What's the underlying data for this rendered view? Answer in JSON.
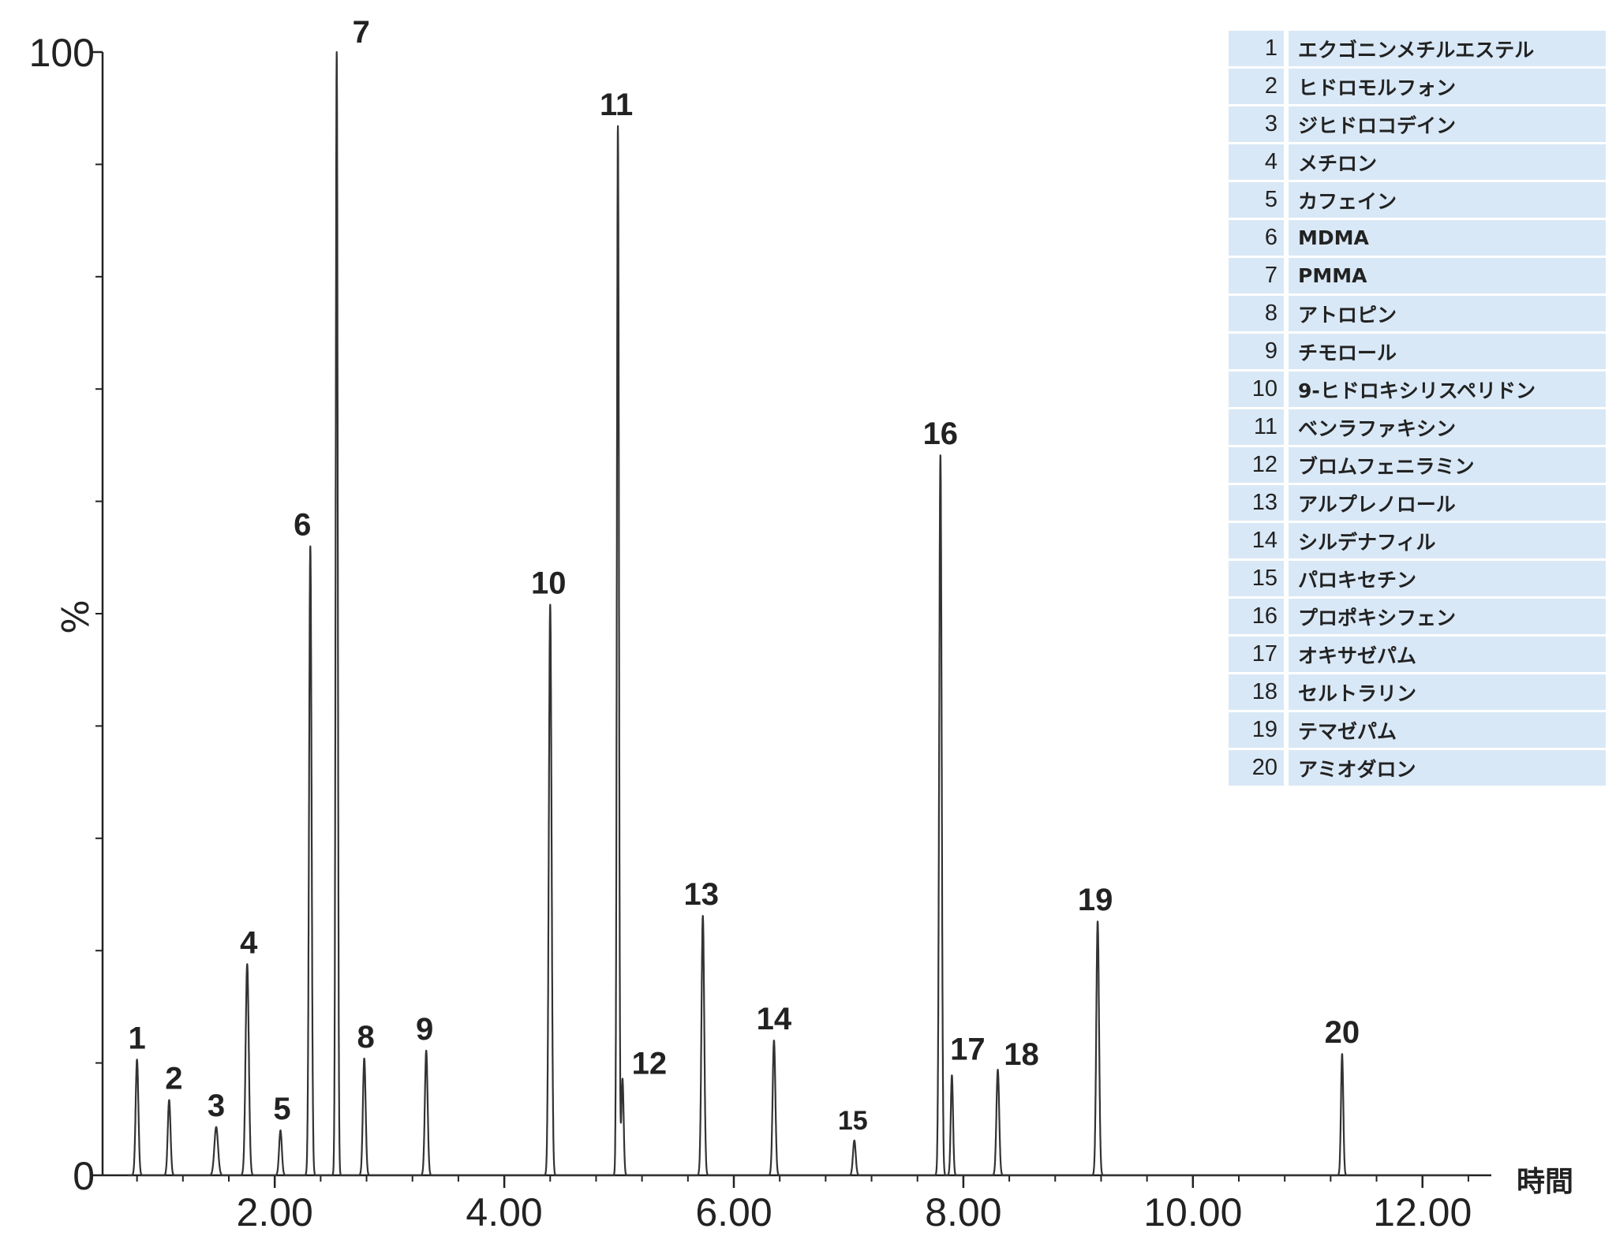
{
  "chart_data": {
    "type": "line",
    "title": "",
    "xlabel": "時間",
    "ylabel": "%",
    "xlim": [
      0.5,
      12.6
    ],
    "ylim": [
      0,
      100
    ],
    "x_ticks": [
      2.0,
      4.0,
      6.0,
      8.0,
      10.0,
      12.0
    ],
    "x_tick_labels": [
      "2.00",
      "4.00",
      "6.00",
      "8.00",
      "10.00",
      "12.00"
    ],
    "y_ticks": [
      0,
      100
    ],
    "y_tick_labels": [
      "0",
      "100"
    ],
    "y_minor_ticks": [
      10,
      20,
      30,
      40,
      50,
      60,
      70,
      80,
      90
    ],
    "x_minor_step": 0.4,
    "series": [
      {
        "name": "chromatogram",
        "peaks": [
          {
            "id": "1",
            "rt": 0.8,
            "height": 10.3,
            "width": 0.012
          },
          {
            "id": "2",
            "rt": 1.08,
            "height": 6.7,
            "width": 0.012
          },
          {
            "id": "3",
            "rt": 1.49,
            "height": 4.3,
            "width": 0.016
          },
          {
            "id": "4",
            "rt": 1.76,
            "height": 18.8,
            "width": 0.014
          },
          {
            "id": "5",
            "rt": 2.05,
            "height": 4.0,
            "width": 0.012
          },
          {
            "id": "6",
            "rt": 2.31,
            "height": 56.0,
            "width": 0.011
          },
          {
            "id": "7",
            "rt": 2.54,
            "height": 100.0,
            "width": 0.009
          },
          {
            "id": "8",
            "rt": 2.78,
            "height": 10.4,
            "width": 0.012
          },
          {
            "id": "9",
            "rt": 3.32,
            "height": 11.1,
            "width": 0.012
          },
          {
            "id": "10",
            "rt": 4.4,
            "height": 50.8,
            "width": 0.012
          },
          {
            "id": "11",
            "rt": 4.99,
            "height": 93.4,
            "width": 0.009
          },
          {
            "id": "12",
            "rt": 5.03,
            "height": 8.6,
            "width": 0.01
          },
          {
            "id": "13",
            "rt": 5.73,
            "height": 23.1,
            "width": 0.012
          },
          {
            "id": "14",
            "rt": 6.35,
            "height": 12.0,
            "width": 0.012
          },
          {
            "id": "15",
            "rt": 7.05,
            "height": 3.1,
            "width": 0.012
          },
          {
            "id": "16",
            "rt": 7.8,
            "height": 64.1,
            "width": 0.011
          },
          {
            "id": "17",
            "rt": 7.9,
            "height": 8.9,
            "width": 0.01
          },
          {
            "id": "18",
            "rt": 8.3,
            "height": 9.4,
            "width": 0.012
          },
          {
            "id": "19",
            "rt": 9.17,
            "height": 22.6,
            "width": 0.012
          },
          {
            "id": "20",
            "rt": 11.3,
            "height": 10.8,
            "width": 0.01
          }
        ]
      }
    ],
    "peak_labels": [
      "1",
      "2",
      "3",
      "4",
      "5",
      "6",
      "7",
      "8",
      "9",
      "10",
      "11",
      "12",
      "13",
      "14",
      "15",
      "16",
      "17",
      "18",
      "19",
      "20"
    ],
    "legend": [
      {
        "num": "1",
        "name": "エクゴニンメチルエステル"
      },
      {
        "num": "2",
        "name": "ヒドロモルフォン"
      },
      {
        "num": "3",
        "name": "ジヒドロコデイン"
      },
      {
        "num": "4",
        "name": "メチロン"
      },
      {
        "num": "5",
        "name": "カフェイン"
      },
      {
        "num": "6",
        "name": "MDMA"
      },
      {
        "num": "7",
        "name": "PMMA"
      },
      {
        "num": "8",
        "name": "アトロピン"
      },
      {
        "num": "9",
        "name": "チモロール"
      },
      {
        "num": "10",
        "name": "9-ヒドロキシリスペリドン"
      },
      {
        "num": "11",
        "name": "ベンラファキシン"
      },
      {
        "num": "12",
        "name": "ブロムフェニラミン"
      },
      {
        "num": "13",
        "name": "アルプレノロール"
      },
      {
        "num": "14",
        "name": "シルデナフィル"
      },
      {
        "num": "15",
        "name": "パロキセチン"
      },
      {
        "num": "16",
        "name": "プロポキシフェン"
      },
      {
        "num": "17",
        "name": "オキサゼパム"
      },
      {
        "num": "18",
        "name": "セルトラリン"
      },
      {
        "num": "19",
        "name": "テマゼパム"
      },
      {
        "num": "20",
        "name": "アミオダロン"
      }
    ],
    "colors": {
      "trace": "#333333",
      "axis": "#222222",
      "legend_bg": "#d9e8f6"
    }
  }
}
